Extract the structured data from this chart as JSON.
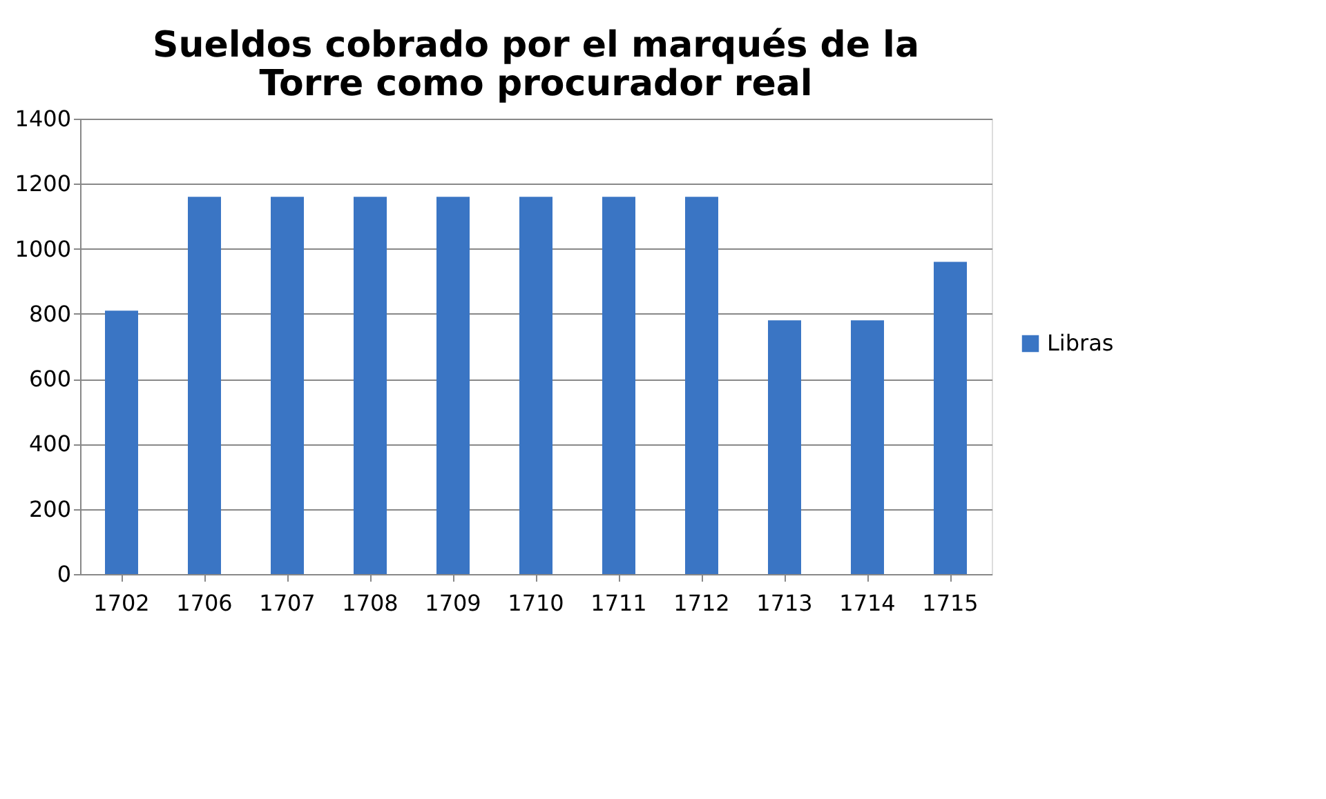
{
  "chart_data": {
    "type": "bar",
    "title": "Sueldos cobrado por el marqués de la Torre como procurador real",
    "categories": [
      "1702",
      "1706",
      "1707",
      "1708",
      "1709",
      "1710",
      "1711",
      "1712",
      "1713",
      "1714",
      "1715"
    ],
    "series": [
      {
        "name": "Libras",
        "color": "#3a75c4",
        "values": [
          810,
          1160,
          1160,
          1160,
          1160,
          1160,
          1160,
          1160,
          780,
          780,
          960
        ]
      }
    ],
    "ylim": [
      0,
      1400
    ],
    "yticks": [
      0,
      200,
      400,
      600,
      800,
      1000,
      1200,
      1400
    ],
    "grid": "y",
    "legend": "right"
  }
}
